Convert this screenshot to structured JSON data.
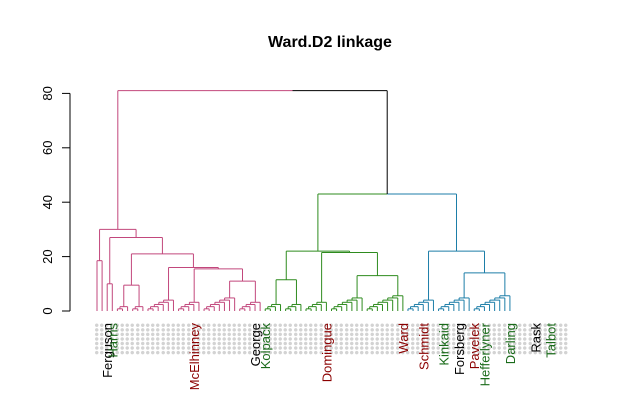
{
  "chart_data": {
    "type": "dendrogram",
    "title": "Ward.D2 linkage",
    "xlabel": "",
    "ylabel": "",
    "ylim": [
      0,
      82
    ],
    "y_ticks": [
      0,
      20,
      40,
      60,
      80
    ],
    "y_tick_labels": [
      "0",
      "20",
      "40",
      "60",
      "80"
    ],
    "n_leaves": 93,
    "colors": {
      "cluster1": "#c2477c",
      "cluster2": "#2e8b1e",
      "cluster3": "#1d7ea8",
      "root": "#000000",
      "label_gray": "#b0b0b0",
      "label_red": "#8b0000",
      "label_green": "#1a6b1a",
      "label_black": "#000000"
    },
    "merges": [
      {
        "name": "root",
        "height": 81,
        "children": [
          "cluster1",
          "right"
        ]
      },
      {
        "name": "right",
        "height": 43,
        "children": [
          "cluster2",
          "cluster3"
        ]
      },
      {
        "name": "cluster1-top",
        "height": 30
      },
      {
        "name": "cluster1-sub",
        "height": 27
      },
      {
        "name": "cluster2-top",
        "height": 22
      },
      {
        "name": "cluster3-top",
        "height": 22
      }
    ],
    "visible_leaf_labels": [
      {
        "text": "Ferguson",
        "color": "label_black"
      },
      {
        "text": "Harris",
        "color": "label_green"
      },
      {
        "text": "McElhinney",
        "color": "label_red"
      },
      {
        "text": "George",
        "color": "label_black"
      },
      {
        "text": "Kolpack",
        "color": "label_green"
      },
      {
        "text": "Domingue",
        "color": "label_red"
      },
      {
        "text": "Ward",
        "color": "label_red"
      },
      {
        "text": "Schmidt",
        "color": "label_red"
      },
      {
        "text": "Kinkaid",
        "color": "label_green"
      },
      {
        "text": "Forsberg",
        "color": "label_black"
      },
      {
        "text": "Pavelek",
        "color": "label_red"
      },
      {
        "text": "Hefferlyner",
        "color": "label_green"
      },
      {
        "text": "Darling",
        "color": "label_green"
      },
      {
        "text": "Rask",
        "color": "label_black"
      },
      {
        "text": "Talbot",
        "color": "label_green"
      }
    ]
  }
}
